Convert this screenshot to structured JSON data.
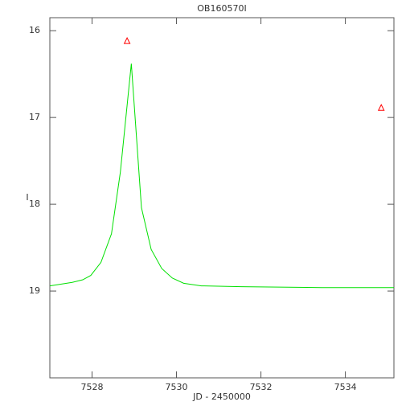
{
  "chart_data": {
    "type": "line",
    "title": "OB160570I",
    "xlabel": "JD - 2450000",
    "ylabel": "I",
    "xlim": [
      7527,
      7535.15
    ],
    "ylim": [
      20,
      15.85
    ],
    "xticks": [
      7528,
      7530,
      7532,
      7534
    ],
    "yticks": [
      16,
      17,
      18,
      19
    ],
    "series": [
      {
        "color": "#00e000",
        "style": "line",
        "x": [
          7527,
          7527.53,
          7527.78,
          7527.97,
          7528.21,
          7528.46,
          7528.67,
          7528.93,
          7529.17,
          7529.4,
          7529.65,
          7529.9,
          7530.17,
          7530.59,
          7531.53,
          7533.44,
          7535.15
        ],
        "values": [
          18.94,
          18.9,
          18.87,
          18.82,
          18.67,
          18.34,
          17.63,
          16.38,
          18.04,
          18.52,
          18.74,
          18.85,
          18.91,
          18.94,
          18.95,
          18.96,
          18.96
        ]
      },
      {
        "color": "#ff0000",
        "style": "triangle",
        "x": [
          7528.83,
          7534.85
        ],
        "values": [
          16.12,
          16.89
        ]
      }
    ]
  }
}
